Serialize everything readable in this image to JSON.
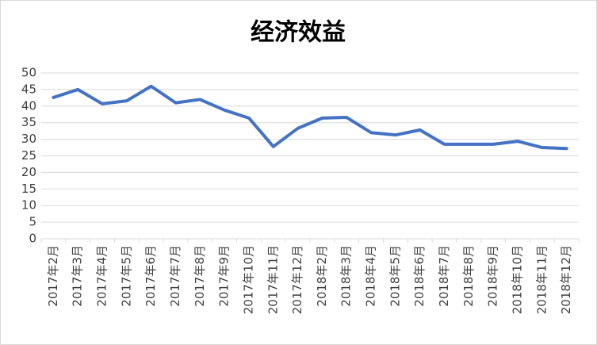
{
  "chart_data": {
    "type": "line",
    "title": "经济效益",
    "categories": [
      "2017年2月",
      "2017年3月",
      "2017年4月",
      "2017年5月",
      "2017年6月",
      "2017年7月",
      "2017年8月",
      "2017年9月",
      "2017年10月",
      "2017年11月",
      "2017年12月",
      "2018年2月",
      "2018年3月",
      "2018年4月",
      "2018年5月",
      "2018年6月",
      "2018年7月",
      "2018年8月",
      "2018年9月",
      "2018年10月",
      "2018年11月",
      "2018年12月"
    ],
    "values": [
      42.6,
      45,
      40.7,
      41.6,
      46,
      41,
      42,
      38.8,
      36.4,
      27.8,
      33.3,
      36.4,
      36.6,
      32,
      31.3,
      32.8,
      28.5,
      28.5,
      28.5,
      29.4,
      27.5,
      27.2
    ],
    "color": "#4472c4",
    "ylim": [
      0,
      50
    ],
    "yticks": [
      0,
      5,
      10,
      15,
      20,
      25,
      30,
      35,
      40,
      45,
      50
    ],
    "grid": true
  }
}
